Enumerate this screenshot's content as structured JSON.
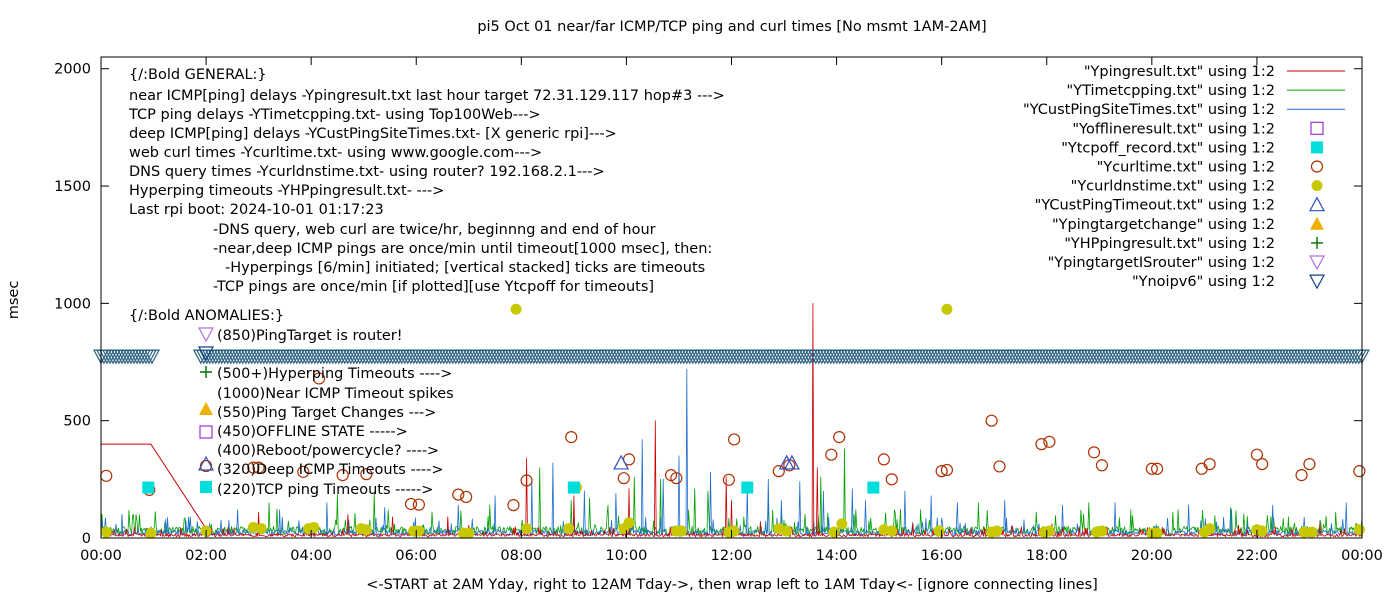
{
  "chart_data": {
    "type": "scatter",
    "title": "pi5 Oct 01  near/far ICMP/TCP ping and curl times [No msmt 1AM-2AM]",
    "xlabel": "<-START at 2AM Yday, right to 12AM Tday->, then wrap left to 1AM Tday<- [ignore connecting lines]",
    "ylabel": "msec",
    "xlim": [
      0,
      24
    ],
    "ylim": [
      0,
      2050
    ],
    "x_ticks": [
      "00:00",
      "02:00",
      "04:00",
      "06:00",
      "08:00",
      "10:00",
      "12:00",
      "14:00",
      "16:00",
      "18:00",
      "20:00",
      "22:00",
      "00:00"
    ],
    "y_ticks": [
      0,
      500,
      1000,
      1500,
      2000
    ],
    "grid": false,
    "legend_placement": "top-right",
    "legend": [
      {
        "label": "\"Ypingresult.txt\" using 1:2",
        "kind": "line",
        "color": "#cc0000",
        "marker": ""
      },
      {
        "label": "\"YTimetcpping.txt\" using 1:2",
        "kind": "line",
        "color": "#00a000",
        "marker": ""
      },
      {
        "label": "\"YCustPingSiteTimes.txt\" using 1:2",
        "kind": "line",
        "color": "#1f6fd0",
        "marker": ""
      },
      {
        "label": "\"Yofflineresult.txt\" using 1:2",
        "kind": "marker",
        "color": "#9932cc",
        "marker": "open-square"
      },
      {
        "label": "\"Ytcpoff_record.txt\" using 1:2",
        "kind": "marker",
        "color": "#00dddd",
        "marker": "filled-square"
      },
      {
        "label": "\"Ycurltime.txt\" using 1:2",
        "kind": "marker",
        "color": "#b03000",
        "marker": "open-circle"
      },
      {
        "label": "\"Ycurldnstime.txt\" using 1:2",
        "kind": "marker",
        "color": "#c8c800",
        "marker": "filled-circle"
      },
      {
        "label": "\"YCustPingTimeout.txt\" using 1:2",
        "kind": "marker",
        "color": "#3050c0",
        "marker": "open-triangle-up"
      },
      {
        "label": "\"Ypingtargetchange\" using 1:2",
        "kind": "marker",
        "color": "#f0b000",
        "marker": "filled-triangle-up"
      },
      {
        "label": "\"YHPpingresult.txt\" using 1:2",
        "kind": "marker",
        "color": "#007000",
        "marker": "plus"
      },
      {
        "label": "\"YpingtargetISrouter\" using 1:2",
        "kind": "marker",
        "color": "#b070e0",
        "marker": "open-triangle-down"
      },
      {
        "label": "\"Ynoipv6\" using 1:2",
        "kind": "marker",
        "color": "#104080",
        "marker": "open-triangle-down"
      }
    ],
    "annotations": [
      "{/:Bold GENERAL:}",
      "near ICMP[ping] delays -Ypingresult.txt last hour target 72.31.129.117 hop#3 --->",
      "TCP ping delays -YTimetcpping.txt- using Top100Web--->",
      "deep ICMP[ping] delays -YCustPingSiteTimes.txt- [X generic rpi]--->",
      "web curl times -Ycurltime.txt- using www.google.com--->",
      "DNS query times -Ycurldnstime.txt- using router? 192.168.2.1--->",
      "Hyperping timeouts -YHPpingresult.txt- --->",
      "Last rpi boot: 2024-10-01 01:17:23",
      "-DNS query, web curl are twice/hr, beginnng and end of hour",
      "-near,deep ICMP pings are once/min until timeout[1000 msec], then:",
      "-Hyperpings [6/min] initiated; [vertical stacked] ticks are timeouts",
      "-TCP pings are once/min [if plotted][use Ytcpoff for timeouts]",
      "{/:Bold ANOMALIES:}",
      "(850)PingTarget is router!",
      "(500+)Hyperping Timeouts ---->",
      "(1000)Near ICMP Timeout spikes",
      "(550)Ping Target Changes --->",
      "(450)OFFLINE STATE ----->",
      "(400)Reboot/powercycle? ---->",
      "(320)Deep ICMP Timeouts ---->",
      "(220)TCP ping Timeouts ----->"
    ],
    "anomaly_markers": [
      {
        "y": 850,
        "marker": "open-triangle-down",
        "color": "#b070e0"
      },
      {
        "y": 775,
        "marker": "open-triangle-down",
        "color": "#104080"
      },
      {
        "y": 500,
        "marker": "plus",
        "color": "#007000"
      },
      {
        "y": 550,
        "marker": "filled-triangle-up",
        "color": "#f0b000"
      },
      {
        "y": 450,
        "marker": "open-square",
        "color": "#9932cc"
      },
      {
        "y": 400,
        "marker": "open-circle",
        "color": "#b03000"
      },
      {
        "y": 320,
        "marker": "open-triangle-up",
        "color": "#3050c0"
      },
      {
        "y": 220,
        "marker": "filled-square",
        "color": "#00dddd"
      }
    ],
    "series": [
      {
        "name": "\"Ynoipv6\" using 1:2",
        "marker": "open-triangle-down",
        "color": "#2a5f80",
        "y_band": 775,
        "x_segments": [
          [
            0,
            1.0
          ],
          [
            1.9,
            24.0
          ]
        ]
      },
      {
        "name": "\"Ycurltime.txt\" using 1:2",
        "marker": "open-circle",
        "color": "#b03000",
        "points": [
          [
            0.1,
            265
          ],
          [
            0.92,
            205
          ],
          [
            2.9,
            300
          ],
          [
            3.0,
            300
          ],
          [
            3.85,
            282
          ],
          [
            4.15,
            680
          ],
          [
            4.6,
            268
          ],
          [
            5.05,
            272
          ],
          [
            5.9,
            145
          ],
          [
            6.05,
            142
          ],
          [
            6.8,
            185
          ],
          [
            6.95,
            175
          ],
          [
            7.85,
            140
          ],
          [
            8.1,
            245
          ],
          [
            8.95,
            430
          ],
          [
            9.0,
            215
          ],
          [
            9.95,
            255
          ],
          [
            10.05,
            335
          ],
          [
            10.85,
            268
          ],
          [
            10.95,
            255
          ],
          [
            11.95,
            248
          ],
          [
            12.05,
            420
          ],
          [
            12.9,
            285
          ],
          [
            13.1,
            310
          ],
          [
            13.9,
            355
          ],
          [
            14.05,
            430
          ],
          [
            14.9,
            335
          ],
          [
            15.05,
            250
          ],
          [
            16.0,
            285
          ],
          [
            16.1,
            290
          ],
          [
            16.95,
            500
          ],
          [
            17.1,
            305
          ],
          [
            17.9,
            400
          ],
          [
            18.05,
            410
          ],
          [
            18.9,
            365
          ],
          [
            19.05,
            310
          ],
          [
            20.0,
            295
          ],
          [
            20.1,
            295
          ],
          [
            20.95,
            295
          ],
          [
            21.1,
            315
          ],
          [
            22.0,
            355
          ],
          [
            22.1,
            315
          ],
          [
            22.85,
            268
          ],
          [
            23.0,
            315
          ],
          [
            23.95,
            285
          ]
        ]
      },
      {
        "name": "\"Ycurldnstime.txt\" using 1:2",
        "marker": "filled-circle",
        "color": "#c8c800",
        "points": [
          [
            0.1,
            25
          ],
          [
            0.95,
            20
          ],
          [
            2.0,
            30
          ],
          [
            2.9,
            45
          ],
          [
            3.05,
            40
          ],
          [
            3.95,
            40
          ],
          [
            4.05,
            45
          ],
          [
            4.95,
            40
          ],
          [
            5.05,
            35
          ],
          [
            5.95,
            30
          ],
          [
            6.05,
            30
          ],
          [
            6.9,
            20
          ],
          [
            7.0,
            20
          ],
          [
            7.9,
            975
          ],
          [
            8.1,
            40
          ],
          [
            8.9,
            40
          ],
          [
            9.05,
            215
          ],
          [
            9.95,
            40
          ],
          [
            10.05,
            65
          ],
          [
            10.95,
            30
          ],
          [
            11.05,
            30
          ],
          [
            11.95,
            25
          ],
          [
            12.05,
            30
          ],
          [
            12.9,
            40
          ],
          [
            13.05,
            30
          ],
          [
            13.95,
            25
          ],
          [
            14.1,
            60
          ],
          [
            14.9,
            35
          ],
          [
            15.05,
            30
          ],
          [
            15.95,
            30
          ],
          [
            16.1,
            975
          ],
          [
            16.95,
            25
          ],
          [
            17.05,
            30
          ],
          [
            17.95,
            25
          ],
          [
            18.05,
            30
          ],
          [
            18.95,
            25
          ],
          [
            19.05,
            30
          ],
          [
            20.0,
            20
          ],
          [
            20.1,
            20
          ],
          [
            21.0,
            25
          ],
          [
            21.1,
            40
          ],
          [
            22.0,
            35
          ],
          [
            22.1,
            30
          ],
          [
            22.9,
            25
          ],
          [
            23.05,
            25
          ],
          [
            23.95,
            35
          ]
        ]
      },
      {
        "name": "\"YCustPingTimeout.txt\" using 1:2",
        "marker": "open-triangle-up",
        "color": "#3050c0",
        "points": [
          [
            9.9,
            320
          ],
          [
            13.05,
            320
          ],
          [
            13.15,
            320
          ]
        ]
      },
      {
        "name": "\"Ytcpoff_record.txt\" using 1:2",
        "marker": "filled-square",
        "color": "#00dddd",
        "points": [
          [
            0.9,
            215
          ],
          [
            9.0,
            215
          ],
          [
            12.3,
            215
          ],
          [
            14.7,
            215
          ]
        ]
      },
      {
        "name": "\"Ypingresult.txt\" using 1:2",
        "marker": "",
        "color": "#cc0000",
        "x_range": [
          0,
          24
        ],
        "base": 15,
        "spikes": [
          [
            3.0,
            110
          ],
          [
            3.9,
            60
          ],
          [
            4.7,
            100
          ],
          [
            5.55,
            90
          ],
          [
            6.6,
            90
          ],
          [
            7.0,
            55
          ],
          [
            8.1,
            340
          ],
          [
            9.0,
            180
          ],
          [
            10.05,
            210
          ],
          [
            10.55,
            500
          ],
          [
            11.9,
            260
          ],
          [
            12.0,
            160
          ],
          [
            12.55,
            70
          ],
          [
            13.55,
            1000
          ],
          [
            13.62,
            300
          ],
          [
            15.45,
            60
          ],
          [
            17.35,
            50
          ],
          [
            18.1,
            60
          ],
          [
            19.15,
            45
          ],
          [
            20.2,
            45
          ],
          [
            21.65,
            55
          ],
          [
            23.2,
            60
          ]
        ]
      },
      {
        "name": "\"YTimetcpping.txt\" using 1:2",
        "marker": "",
        "color": "#00a000",
        "x_range": [
          0,
          24
        ],
        "base": 40,
        "spikes": [
          [
            0.6,
            95
          ],
          [
            1.6,
            85
          ],
          [
            3.2,
            150
          ],
          [
            4.5,
            185
          ],
          [
            5.2,
            190
          ],
          [
            6.3,
            110
          ],
          [
            7.4,
            140
          ],
          [
            8.35,
            300
          ],
          [
            8.95,
            160
          ],
          [
            9.3,
            170
          ],
          [
            9.65,
            140
          ],
          [
            10.15,
            260
          ],
          [
            10.65,
            250
          ],
          [
            11.3,
            210
          ],
          [
            11.55,
            200
          ],
          [
            12.7,
            160
          ],
          [
            13.7,
            260
          ],
          [
            14.15,
            380
          ],
          [
            15.1,
            120
          ],
          [
            15.6,
            120
          ],
          [
            16.7,
            150
          ],
          [
            17.8,
            110
          ],
          [
            18.8,
            150
          ],
          [
            19.6,
            120
          ],
          [
            20.4,
            110
          ],
          [
            21.2,
            95
          ],
          [
            22.6,
            90
          ],
          [
            23.5,
            110
          ]
        ]
      },
      {
        "name": "\"YCustPingSiteTimes.txt\" using 1:2",
        "marker": "",
        "color": "#1f6fd0",
        "x_range": [
          0,
          24
        ],
        "base": 28,
        "spikes": [
          [
            0.4,
            100
          ],
          [
            1.7,
            90
          ],
          [
            2.6,
            120
          ],
          [
            3.4,
            120
          ],
          [
            4.3,
            150
          ],
          [
            5.4,
            130
          ],
          [
            6.8,
            140
          ],
          [
            7.5,
            180
          ],
          [
            8.2,
            250
          ],
          [
            8.6,
            320
          ],
          [
            9.2,
            200
          ],
          [
            9.8,
            190
          ],
          [
            10.3,
            420
          ],
          [
            10.7,
            250
          ],
          [
            11.0,
            350
          ],
          [
            11.15,
            720
          ],
          [
            11.6,
            280
          ],
          [
            12.3,
            220
          ],
          [
            12.7,
            250
          ],
          [
            12.95,
            160
          ],
          [
            13.3,
            240
          ],
          [
            13.75,
            200
          ],
          [
            14.3,
            210
          ],
          [
            14.55,
            160
          ],
          [
            15.3,
            200
          ],
          [
            15.8,
            180
          ],
          [
            16.3,
            150
          ],
          [
            17.2,
            160
          ],
          [
            18.3,
            140
          ],
          [
            19.3,
            150
          ],
          [
            20.7,
            140
          ],
          [
            21.5,
            130
          ],
          [
            22.3,
            140
          ],
          [
            23.7,
            150
          ]
        ]
      }
    ]
  }
}
